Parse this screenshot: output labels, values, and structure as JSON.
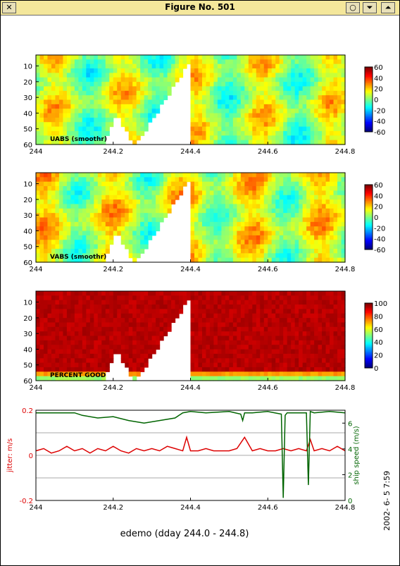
{
  "window": {
    "title": "Figure No. 501",
    "buttons": {
      "close": "✕",
      "circle": "○",
      "down": "⏷",
      "up": "⏶"
    }
  },
  "figure": {
    "bottom_title": "edemo (dday 244.0 - 244.8)",
    "timestamp": "2002- 6- 5   7:59"
  },
  "chart_data": [
    {
      "type": "heatmap",
      "panel_label": "UABS  (smoothr)",
      "x_ticks": [
        "244",
        "244.2",
        "244.4",
        "244.6",
        "244.8"
      ],
      "y_ticks": [
        "10",
        "20",
        "30",
        "40",
        "50",
        "60"
      ],
      "xlim": [
        244.0,
        244.8
      ],
      "ylim": [
        60,
        3
      ],
      "colorbar_ticks": [
        "60",
        "40",
        "20",
        "0",
        "-20",
        "-40",
        "-60"
      ],
      "colorbar_range": [
        -60,
        60
      ],
      "colormap": "jet"
    },
    {
      "type": "heatmap",
      "panel_label": "VABS  (smoothr)",
      "x_ticks": [
        "244",
        "244.2",
        "244.4",
        "244.6",
        "244.8"
      ],
      "y_ticks": [
        "10",
        "20",
        "30",
        "40",
        "50",
        "60"
      ],
      "xlim": [
        244.0,
        244.8
      ],
      "ylim": [
        60,
        3
      ],
      "colorbar_ticks": [
        "60",
        "40",
        "20",
        "0",
        "-20",
        "-40",
        "-60"
      ],
      "colorbar_range": [
        -60,
        60
      ],
      "colormap": "jet"
    },
    {
      "type": "heatmap",
      "panel_label": "PERCENT GOOD",
      "x_ticks": [
        "244",
        "244.2",
        "244.4",
        "244.6",
        "244.8"
      ],
      "y_ticks": [
        "10",
        "20",
        "30",
        "40",
        "50",
        "60"
      ],
      "xlim": [
        244.0,
        244.8
      ],
      "ylim": [
        60,
        3
      ],
      "colorbar_ticks": [
        "100",
        "80",
        "60",
        "40",
        "20",
        "0"
      ],
      "colorbar_range": [
        0,
        100
      ],
      "colormap": "jet"
    },
    {
      "type": "line",
      "ylabel": "jitter: m/s",
      "ylabel2": "ship speed (m/s)",
      "x_ticks": [
        "244",
        "244.2",
        "244.4",
        "244.6",
        "244.8"
      ],
      "y_ticks": [
        "0.2",
        "0",
        "-0.2"
      ],
      "y2_ticks": [
        "6",
        "4",
        "2",
        "0"
      ],
      "xlim": [
        244.0,
        244.8
      ],
      "ylim": [
        -0.2,
        0.2
      ],
      "y2lim": [
        0,
        7
      ],
      "grid_y": [
        0.1,
        -0.1
      ],
      "colors": {
        "jitter": "#dd0000",
        "ship_speed": "#006400"
      },
      "series": [
        {
          "name": "jitter: m/s",
          "axis": "left",
          "x": [
            244.0,
            244.02,
            244.04,
            244.06,
            244.08,
            244.1,
            244.12,
            244.14,
            244.16,
            244.18,
            244.2,
            244.22,
            244.24,
            244.26,
            244.28,
            244.3,
            244.32,
            244.34,
            244.36,
            244.38,
            244.39,
            244.4,
            244.42,
            244.44,
            244.46,
            244.48,
            244.5,
            244.52,
            244.54,
            244.56,
            244.58,
            244.6,
            244.62,
            244.64,
            244.66,
            244.68,
            244.7,
            244.71,
            244.72,
            244.74,
            244.76,
            244.78,
            244.8
          ],
          "y": [
            0.02,
            0.03,
            0.01,
            0.02,
            0.04,
            0.02,
            0.03,
            0.01,
            0.03,
            0.02,
            0.04,
            0.02,
            0.01,
            0.03,
            0.02,
            0.03,
            0.02,
            0.04,
            0.03,
            0.02,
            0.08,
            0.02,
            0.02,
            0.03,
            0.02,
            0.02,
            0.02,
            0.03,
            0.08,
            0.02,
            0.03,
            0.02,
            0.02,
            0.03,
            0.02,
            0.03,
            0.02,
            0.07,
            0.02,
            0.03,
            0.02,
            0.04,
            0.02
          ]
        },
        {
          "name": "ship speed (m/s)",
          "axis": "right",
          "x": [
            244.0,
            244.1,
            244.12,
            244.16,
            244.2,
            244.24,
            244.28,
            244.32,
            244.36,
            244.38,
            244.4,
            244.44,
            244.5,
            244.53,
            244.535,
            244.54,
            244.56,
            244.6,
            244.635,
            244.64,
            244.645,
            244.65,
            244.66,
            244.7,
            244.705,
            244.71,
            244.72,
            244.76,
            244.8
          ],
          "y": [
            6.8,
            6.8,
            6.6,
            6.4,
            6.5,
            6.2,
            6.0,
            6.2,
            6.4,
            6.8,
            6.9,
            6.8,
            6.9,
            6.7,
            6.2,
            6.8,
            6.8,
            6.9,
            6.7,
            0.2,
            6.6,
            6.8,
            6.8,
            6.8,
            1.2,
            6.9,
            6.8,
            6.9,
            6.8
          ]
        }
      ]
    }
  ]
}
